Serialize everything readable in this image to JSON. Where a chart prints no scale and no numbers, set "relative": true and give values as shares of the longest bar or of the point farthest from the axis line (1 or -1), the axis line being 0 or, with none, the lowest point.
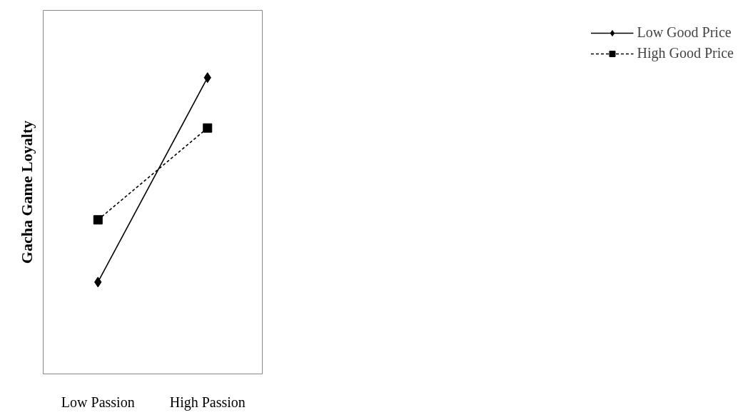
{
  "chart_data": {
    "type": "line",
    "relative": true,
    "ylabel": "Gacha Game Loyalty",
    "categories": [
      "Low Passion",
      "High Passion"
    ],
    "legend": "right",
    "grid": false,
    "series": [
      {
        "name": "Low Good Price",
        "color": "#000000",
        "values": [
          0.31,
          1
        ],
        "marker": "diamond",
        "line_style": "solid"
      },
      {
        "name": "High Good Price",
        "color": "#000000",
        "values": [
          0.52,
          0.83
        ],
        "marker": "square",
        "line_style": "dashed"
      }
    ]
  }
}
